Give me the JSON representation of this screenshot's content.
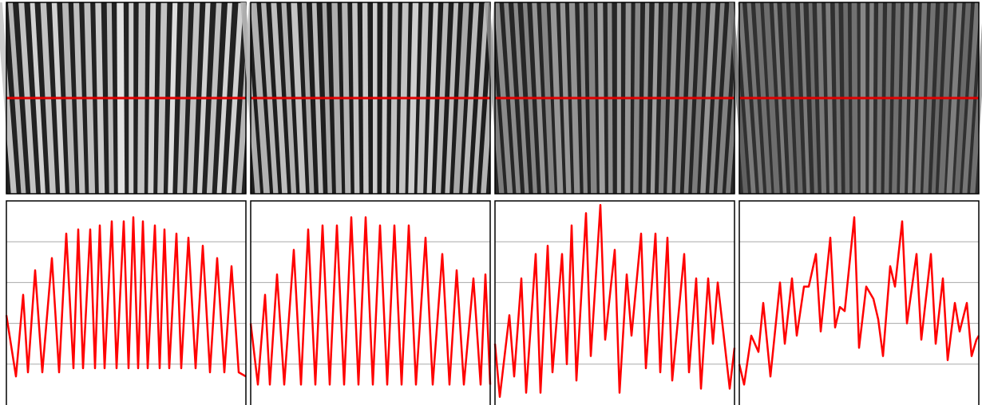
{
  "chart_data": [
    {
      "type": "line",
      "color": "#ff0000",
      "xlim": [
        0,
        100
      ],
      "ylim": [
        0,
        5
      ],
      "yticks": [
        1,
        2,
        3,
        4
      ],
      "grid": true,
      "x": [
        0,
        4,
        7,
        9,
        12,
        15,
        19,
        22,
        25,
        28,
        30,
        32,
        35,
        37,
        39,
        41,
        44,
        46,
        49,
        51,
        53,
        55,
        57,
        59,
        62,
        64,
        66,
        68,
        71,
        73,
        76,
        79,
        82,
        85,
        88,
        91,
        94,
        97,
        100
      ],
      "values": [
        2.2,
        0.7,
        2.7,
        0.8,
        3.3,
        0.8,
        3.6,
        0.8,
        4.2,
        0.9,
        4.3,
        0.9,
        4.3,
        0.9,
        4.4,
        0.9,
        4.5,
        0.9,
        4.5,
        0.9,
        4.6,
        0.9,
        4.5,
        0.9,
        4.4,
        0.9,
        4.3,
        0.9,
        4.2,
        0.9,
        4.1,
        0.9,
        3.9,
        0.8,
        3.6,
        0.8,
        3.4,
        0.8,
        0.7
      ]
    },
    {
      "type": "line",
      "color": "#ff0000",
      "xlim": [
        0,
        100
      ],
      "ylim": [
        0,
        5
      ],
      "yticks": [
        1,
        2,
        3,
        4
      ],
      "grid": true,
      "x": [
        0,
        3,
        6,
        8,
        11,
        14,
        18,
        21,
        24,
        27,
        30,
        33,
        36,
        39,
        42,
        45,
        48,
        51,
        54,
        57,
        60,
        63,
        66,
        69,
        73,
        76,
        80,
        83,
        86,
        89,
        93,
        96,
        98,
        100
      ],
      "values": [
        2.0,
        0.5,
        2.7,
        0.5,
        3.2,
        0.5,
        3.8,
        0.5,
        4.3,
        0.5,
        4.4,
        0.5,
        4.4,
        0.5,
        4.6,
        0.5,
        4.6,
        0.5,
        4.4,
        0.5,
        4.4,
        0.5,
        4.4,
        0.5,
        4.1,
        0.5,
        3.7,
        0.5,
        3.3,
        0.5,
        3.1,
        0.5,
        3.2,
        0.5
      ]
    },
    {
      "type": "line",
      "color": "#ff0000",
      "xlim": [
        0,
        100
      ],
      "ylim": [
        0,
        5
      ],
      "yticks": [
        1,
        2,
        3,
        4
      ],
      "grid": true,
      "x": [
        0,
        2,
        6,
        8,
        11,
        13,
        17,
        19,
        22,
        24,
        28,
        30,
        32,
        34,
        38,
        40,
        44,
        46,
        50,
        52,
        55,
        57,
        61,
        63,
        67,
        69,
        72,
        74,
        79,
        81,
        84,
        86,
        89,
        91,
        93,
        98,
        100
      ],
      "values": [
        1.5,
        0.2,
        2.2,
        0.7,
        3.1,
        0.3,
        3.7,
        0.3,
        3.9,
        0.8,
        3.7,
        1.0,
        4.4,
        0.6,
        4.7,
        1.2,
        4.9,
        1.6,
        3.8,
        0.3,
        3.2,
        1.7,
        4.2,
        0.9,
        4.2,
        0.8,
        4.1,
        0.6,
        3.7,
        0.8,
        3.1,
        0.4,
        3.1,
        1.5,
        3.0,
        0.4,
        1.4
      ]
    },
    {
      "type": "line",
      "color": "#ff0000",
      "xlim": [
        0,
        100
      ],
      "ylim": [
        0,
        5
      ],
      "yticks": [
        1,
        2,
        3,
        4
      ],
      "grid": true,
      "x": [
        0,
        2,
        5,
        8,
        10,
        13,
        17,
        19,
        22,
        24,
        27,
        29,
        32,
        34,
        38,
        40,
        42,
        44,
        48,
        50,
        53,
        56,
        58,
        60,
        63,
        65,
        68,
        70,
        74,
        76,
        80,
        82,
        85,
        87,
        90,
        92,
        95,
        97,
        99,
        100
      ],
      "values": [
        1.0,
        0.5,
        1.7,
        1.3,
        2.5,
        0.7,
        3.0,
        1.5,
        3.1,
        1.7,
        2.9,
        2.9,
        3.7,
        1.8,
        4.1,
        1.9,
        2.4,
        2.3,
        4.6,
        1.4,
        2.9,
        2.6,
        2.1,
        1.2,
        3.4,
        2.9,
        4.5,
        2.0,
        3.7,
        1.6,
        3.7,
        1.5,
        3.1,
        1.1,
        2.5,
        1.8,
        2.5,
        1.2,
        1.6,
        1.7
      ]
    }
  ]
}
